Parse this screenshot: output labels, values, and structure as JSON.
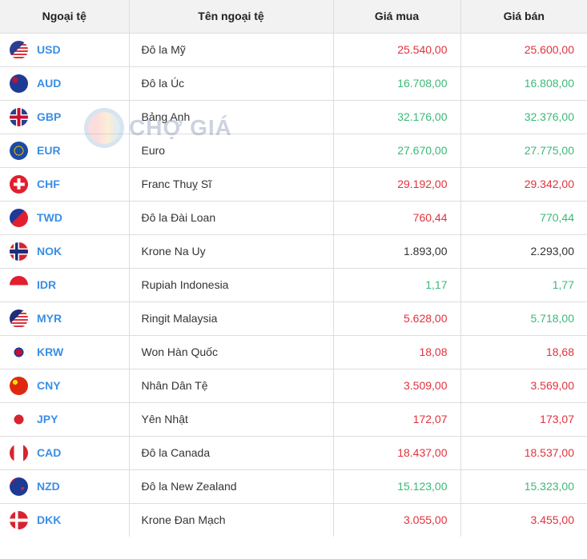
{
  "headers": [
    "Ngoại tệ",
    "Tên ngoại tệ",
    "Giá mua",
    "Giá bán"
  ],
  "watermark": "CHỢ GIÁ",
  "colors": {
    "up": "#3cb878",
    "down": "#e0323c",
    "flat": "#333333",
    "code": "#3a8ee6"
  },
  "rows": [
    {
      "code": "USD",
      "name": "Đô la Mỹ",
      "buy": "25.540,00",
      "sell": "25.600,00",
      "buy_trend": "red",
      "sell_trend": "red",
      "flag": "us-flag-icon"
    },
    {
      "code": "AUD",
      "name": "Đô la Úc",
      "buy": "16.708,00",
      "sell": "16.808,00",
      "buy_trend": "green",
      "sell_trend": "green",
      "flag": "au-flag-icon"
    },
    {
      "code": "GBP",
      "name": "Bảng Anh",
      "buy": "32.176,00",
      "sell": "32.376,00",
      "buy_trend": "green",
      "sell_trend": "green",
      "flag": "gb-flag-icon"
    },
    {
      "code": "EUR",
      "name": "Euro",
      "buy": "27.670,00",
      "sell": "27.775,00",
      "buy_trend": "green",
      "sell_trend": "green",
      "flag": "eu-flag-icon"
    },
    {
      "code": "CHF",
      "name": "Franc Thuỵ Sĩ",
      "buy": "29.192,00",
      "sell": "29.342,00",
      "buy_trend": "red",
      "sell_trend": "red",
      "flag": "ch-flag-icon"
    },
    {
      "code": "TWD",
      "name": "Đô la Đài Loan",
      "buy": "760,44",
      "sell": "770,44",
      "buy_trend": "red",
      "sell_trend": "green",
      "flag": "tw-flag-icon"
    },
    {
      "code": "NOK",
      "name": "Krone Na Uy",
      "buy": "1.893,00",
      "sell": "2.293,00",
      "buy_trend": "black",
      "sell_trend": "black",
      "flag": "no-flag-icon"
    },
    {
      "code": "IDR",
      "name": "Rupiah Indonesia",
      "buy": "1,17",
      "sell": "1,77",
      "buy_trend": "green",
      "sell_trend": "green",
      "flag": "id-flag-icon"
    },
    {
      "code": "MYR",
      "name": "Ringit Malaysia",
      "buy": "5.628,00",
      "sell": "5.718,00",
      "buy_trend": "red",
      "sell_trend": "green",
      "flag": "my-flag-icon"
    },
    {
      "code": "KRW",
      "name": "Won Hàn Quốc",
      "buy": "18,08",
      "sell": "18,68",
      "buy_trend": "red",
      "sell_trend": "red",
      "flag": "kr-flag-icon"
    },
    {
      "code": "CNY",
      "name": "Nhân Dân Tệ",
      "buy": "3.509,00",
      "sell": "3.569,00",
      "buy_trend": "red",
      "sell_trend": "red",
      "flag": "cn-flag-icon"
    },
    {
      "code": "JPY",
      "name": "Yên Nhật",
      "buy": "172,07",
      "sell": "173,07",
      "buy_trend": "red",
      "sell_trend": "red",
      "flag": "jp-flag-icon"
    },
    {
      "code": "CAD",
      "name": "Đô la Canada",
      "buy": "18.437,00",
      "sell": "18.537,00",
      "buy_trend": "red",
      "sell_trend": "red",
      "flag": "ca-flag-icon"
    },
    {
      "code": "NZD",
      "name": "Đô la New Zealand",
      "buy": "15.123,00",
      "sell": "15.323,00",
      "buy_trend": "green",
      "sell_trend": "green",
      "flag": "nz-flag-icon"
    },
    {
      "code": "DKK",
      "name": "Krone Đan Mạch",
      "buy": "3.055,00",
      "sell": "3.455,00",
      "buy_trend": "red",
      "sell_trend": "red",
      "flag": "dk-flag-icon"
    }
  ]
}
